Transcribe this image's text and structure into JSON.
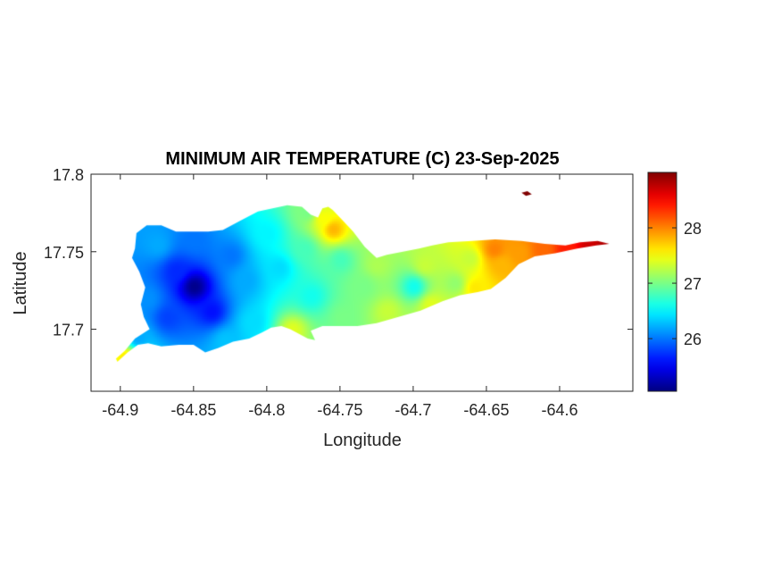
{
  "chart_data": {
    "type": "heatmap",
    "title": "MINIMUM AIR TEMPERATURE (C) 23-Sep-2025",
    "xlabel": "Longitude",
    "ylabel": "Latitude",
    "xlim": [
      -64.92,
      -64.55
    ],
    "ylim": [
      17.66,
      17.8
    ],
    "xticks": [
      -64.9,
      -64.85,
      -64.8,
      -64.75,
      -64.7,
      -64.65,
      -64.6
    ],
    "xtick_labels": [
      "-64.9",
      "-64.85",
      "-64.8",
      "-64.75",
      "-64.7",
      "-64.65",
      "-64.6"
    ],
    "yticks": [
      17.7,
      17.75,
      17.8
    ],
    "ytick_labels": [
      "17.7",
      "17.75",
      "17.8"
    ],
    "colorbar": {
      "range": [
        25.05,
        29.0
      ],
      "ticks": [
        26,
        27,
        28
      ],
      "tick_labels": [
        "26",
        "27",
        "28"
      ],
      "colormap": "jet"
    },
    "grid": false,
    "outline": [
      [
        -64.902,
        17.679
      ],
      [
        -64.895,
        17.685
      ],
      [
        -64.888,
        17.69
      ],
      [
        -64.881,
        17.691
      ],
      [
        -64.872,
        17.689
      ],
      [
        -64.86,
        17.69
      ],
      [
        -64.85,
        17.69
      ],
      [
        -64.842,
        17.685
      ],
      [
        -64.833,
        17.688
      ],
      [
        -64.823,
        17.692
      ],
      [
        -64.812,
        17.694
      ],
      [
        -64.803,
        17.698
      ],
      [
        -64.797,
        17.701
      ],
      [
        -64.79,
        17.702
      ],
      [
        -64.784,
        17.7
      ],
      [
        -64.778,
        17.697
      ],
      [
        -64.772,
        17.694
      ],
      [
        -64.767,
        17.693
      ],
      [
        -64.77,
        17.699
      ],
      [
        -64.762,
        17.702
      ],
      [
        -64.752,
        17.702
      ],
      [
        -64.738,
        17.702
      ],
      [
        -64.725,
        17.704
      ],
      [
        -64.71,
        17.708
      ],
      [
        -64.695,
        17.712
      ],
      [
        -64.68,
        17.718
      ],
      [
        -64.668,
        17.722
      ],
      [
        -64.656,
        17.724
      ],
      [
        -64.647,
        17.726
      ],
      [
        -64.637,
        17.733
      ],
      [
        -64.628,
        17.742
      ],
      [
        -64.617,
        17.747
      ],
      [
        -64.603,
        17.749
      ],
      [
        -64.588,
        17.752
      ],
      [
        -64.575,
        17.754
      ],
      [
        -64.566,
        17.755
      ],
      [
        -64.574,
        17.757
      ],
      [
        -64.586,
        17.756
      ],
      [
        -64.596,
        17.754
      ],
      [
        -64.61,
        17.755
      ],
      [
        -64.626,
        17.757
      ],
      [
        -64.644,
        17.758
      ],
      [
        -64.66,
        17.757
      ],
      [
        -64.676,
        17.756
      ],
      [
        -64.687,
        17.754
      ],
      [
        -64.696,
        17.752
      ],
      [
        -64.707,
        17.75
      ],
      [
        -64.718,
        17.748
      ],
      [
        -64.725,
        17.746
      ],
      [
        -64.733,
        17.753
      ],
      [
        -64.741,
        17.763
      ],
      [
        -64.749,
        17.771
      ],
      [
        -64.755,
        17.777
      ],
      [
        -64.758,
        17.779
      ],
      [
        -64.762,
        17.778
      ],
      [
        -64.765,
        17.772
      ],
      [
        -64.77,
        17.774
      ],
      [
        -64.776,
        17.779
      ],
      [
        -64.786,
        17.78
      ],
      [
        -64.796,
        17.778
      ],
      [
        -64.806,
        17.776
      ],
      [
        -64.818,
        17.77
      ],
      [
        -64.83,
        17.764
      ],
      [
        -64.84,
        17.763
      ],
      [
        -64.851,
        17.763
      ],
      [
        -64.862,
        17.763
      ],
      [
        -64.872,
        17.767
      ],
      [
        -64.882,
        17.767
      ],
      [
        -64.889,
        17.762
      ],
      [
        -64.89,
        17.752
      ],
      [
        -64.892,
        17.746
      ],
      [
        -64.887,
        17.737
      ],
      [
        -64.883,
        17.727
      ],
      [
        -64.886,
        17.716
      ],
      [
        -64.884,
        17.708
      ],
      [
        -64.88,
        17.7
      ],
      [
        -64.89,
        17.694
      ],
      [
        -64.897,
        17.686
      ],
      [
        -64.903,
        17.681
      ]
    ],
    "islets": [
      [
        [
          -64.626,
          17.788
        ],
        [
          -64.622,
          17.789
        ],
        [
          -64.619,
          17.787
        ],
        [
          -64.623,
          17.786
        ]
      ]
    ],
    "control_points": [
      {
        "lon": -64.85,
        "lat": 17.728,
        "temp": 25.1
      },
      {
        "lon": -64.862,
        "lat": 17.738,
        "temp": 25.7
      },
      {
        "lon": -64.838,
        "lat": 17.712,
        "temp": 25.6
      },
      {
        "lon": -64.868,
        "lat": 17.708,
        "temp": 25.8
      },
      {
        "lon": -64.882,
        "lat": 17.72,
        "temp": 26.1
      },
      {
        "lon": -64.875,
        "lat": 17.755,
        "temp": 26.2
      },
      {
        "lon": -64.85,
        "lat": 17.758,
        "temp": 26.0
      },
      {
        "lon": -64.825,
        "lat": 17.748,
        "temp": 26.0
      },
      {
        "lon": -64.815,
        "lat": 17.732,
        "temp": 26.2
      },
      {
        "lon": -64.8,
        "lat": 17.762,
        "temp": 26.5
      },
      {
        "lon": -64.792,
        "lat": 17.74,
        "temp": 26.4
      },
      {
        "lon": -64.81,
        "lat": 17.705,
        "temp": 26.4
      },
      {
        "lon": -64.828,
        "lat": 17.693,
        "temp": 26.3
      },
      {
        "lon": -64.888,
        "lat": 17.695,
        "temp": 26.2
      },
      {
        "lon": -64.897,
        "lat": 17.682,
        "temp": 27.6
      },
      {
        "lon": -64.775,
        "lat": 17.752,
        "temp": 26.8
      },
      {
        "lon": -64.77,
        "lat": 17.722,
        "temp": 26.6
      },
      {
        "lon": -64.783,
        "lat": 17.7,
        "temp": 27.4
      },
      {
        "lon": -64.773,
        "lat": 17.776,
        "temp": 27.0
      },
      {
        "lon": -64.762,
        "lat": 17.772,
        "temp": 27.5
      },
      {
        "lon": -64.75,
        "lat": 17.745,
        "temp": 26.8
      },
      {
        "lon": -64.748,
        "lat": 17.708,
        "temp": 27.0
      },
      {
        "lon": -64.735,
        "lat": 17.728,
        "temp": 27.0
      },
      {
        "lon": -64.725,
        "lat": 17.742,
        "temp": 27.2
      },
      {
        "lon": -64.718,
        "lat": 17.712,
        "temp": 27.3
      },
      {
        "lon": -64.7,
        "lat": 17.728,
        "temp": 26.6
      },
      {
        "lon": -64.692,
        "lat": 17.742,
        "temp": 27.3
      },
      {
        "lon": -64.688,
        "lat": 17.716,
        "temp": 27.4
      },
      {
        "lon": -64.672,
        "lat": 17.73,
        "temp": 27.1
      },
      {
        "lon": -64.662,
        "lat": 17.746,
        "temp": 27.3
      },
      {
        "lon": -64.658,
        "lat": 17.727,
        "temp": 27.6
      },
      {
        "lon": -64.64,
        "lat": 17.742,
        "temp": 27.8
      },
      {
        "lon": -64.645,
        "lat": 17.752,
        "temp": 28.0
      },
      {
        "lon": -64.628,
        "lat": 17.75,
        "temp": 27.9
      },
      {
        "lon": -64.612,
        "lat": 17.752,
        "temp": 28.1
      },
      {
        "lon": -64.595,
        "lat": 17.752,
        "temp": 28.4
      },
      {
        "lon": -64.58,
        "lat": 17.754,
        "temp": 28.7
      },
      {
        "lon": -64.57,
        "lat": 17.755,
        "temp": 28.8
      },
      {
        "lon": -64.755,
        "lat": 17.765,
        "temp": 27.8
      },
      {
        "lon": -64.623,
        "lat": 17.788,
        "temp": 29.0
      }
    ]
  }
}
